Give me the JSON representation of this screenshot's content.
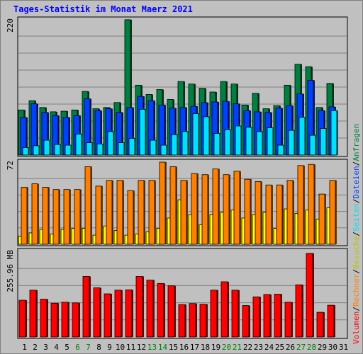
{
  "title": "Tages-Statistik im Monat Maerz 2021",
  "chart_data": {
    "type": "bar",
    "days": [
      "1",
      "2",
      "3",
      "4",
      "5",
      "6",
      "7",
      "8",
      "9",
      "10",
      "11",
      "12",
      "13",
      "14",
      "15",
      "16",
      "17",
      "18",
      "19",
      "20",
      "21",
      "22",
      "23",
      "24",
      "25",
      "26",
      "27",
      "28",
      "29",
      "30",
      "31"
    ],
    "weekend_days": [
      "6",
      "7",
      "13",
      "14",
      "20",
      "21",
      "27",
      "28"
    ],
    "colors": {
      "anfragen": "#008040",
      "dateien": "#0040ff",
      "seiten": "#00e0ff",
      "besuche": "#ffff00",
      "rechner": "#ff8000",
      "kbytes": "#ff0000",
      "weekday_label": "#000000",
      "weekend_label": "#008000",
      "title": "#0000ff",
      "grid": "#808080"
    },
    "panels": [
      {
        "max_label": "220",
        "max": 220,
        "series": [
          {
            "key": "anfragen",
            "values": [
              73,
              88,
              77,
              70,
              71,
              73,
              103,
              75,
              77,
              85,
              219,
              113,
              98,
              106,
              90,
              119,
              115,
              108,
              102,
              119,
              115,
              81,
              100,
              75,
              80,
              113,
              147,
              143,
              77,
              116
            ]
          },
          {
            "key": "dateien",
            "values": [
              61,
              83,
              69,
              64,
              61,
              64,
              91,
              72,
              75,
              69,
              77,
              95,
              88,
              81,
              76,
              77,
              79,
              85,
              86,
              87,
              83,
              72,
              70,
              69,
              76,
              80,
              99,
              121,
              72,
              78
            ]
          },
          {
            "key": "seiten",
            "values": [
              12,
              15,
              24,
              17,
              16,
              34,
              20,
              18,
              38,
              20,
              27,
              74,
              24,
              16,
              33,
              38,
              67,
              62,
              35,
              41,
              47,
              45,
              38,
              44,
              16,
              40,
              61,
              32,
              43,
              72
            ]
          }
        ]
      },
      {
        "max_label": "72",
        "max": 72,
        "series": [
          {
            "key": "besuche",
            "values": [
              7,
              10,
              13,
              9,
              13,
              14,
              14,
              8,
              16,
              12,
              8,
              9,
              11,
              14,
              23,
              39,
              26,
              17,
              26,
              28,
              30,
              23,
              26,
              28,
              14,
              31,
              27,
              30,
              22,
              32
            ]
          },
          {
            "key": "rechner",
            "values": [
              50,
              53,
              50,
              48,
              48,
              48,
              68,
              51,
              56,
              56,
              47,
              56,
              56,
              72,
              68,
              56,
              62,
              61,
              66,
              61,
              64,
              57,
              55,
              52,
              52,
              56,
              69,
              70,
              44,
              56
            ]
          }
        ]
      },
      {
        "max_label": "255.96 MB",
        "max": 255.96,
        "series": [
          {
            "key": "kbytes",
            "values": [
              110,
              140,
              113,
              101,
              104,
              102,
              181,
              147,
              129,
              140,
              141,
              181,
              170,
              160,
              153,
              97,
              100,
              98,
              140,
              165,
              140,
              94,
              120,
              127,
              128,
              104,
              156,
              250,
              74,
              95
            ]
          }
        ]
      }
    ],
    "legend": [
      {
        "key": "kbytes",
        "label": "Volumen"
      },
      {
        "key": "slash",
        "label": "/"
      },
      {
        "key": "rechner",
        "label": "Rechner"
      },
      {
        "key": "slash",
        "label": "/"
      },
      {
        "key": "besuche",
        "label": "Besuche"
      },
      {
        "key": "slash",
        "label": "/"
      },
      {
        "key": "seiten",
        "label": "Seiten"
      },
      {
        "key": "slash",
        "label": "/"
      },
      {
        "key": "dateien",
        "label": "Dateien"
      },
      {
        "key": "slash",
        "label": "/"
      },
      {
        "key": "anfragen",
        "label": "Anfragen"
      }
    ]
  }
}
